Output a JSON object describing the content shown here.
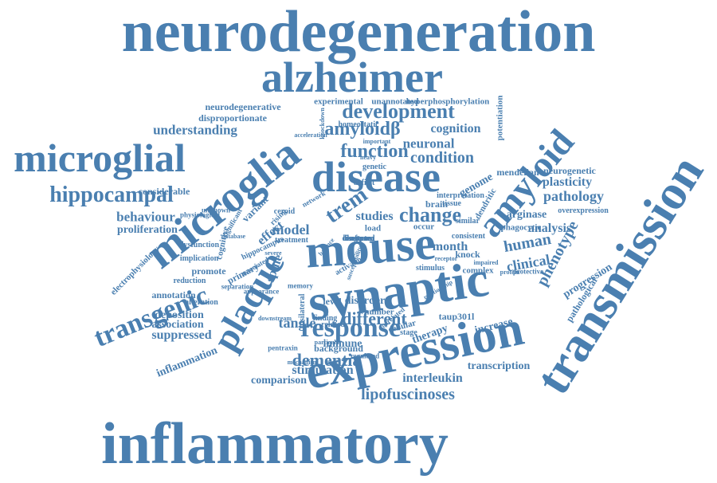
{
  "color": "#4a7fb0",
  "words": [
    "neurodegeneration",
    "alzheimer",
    "inflammatory",
    "transmission",
    "expression",
    "synaptic",
    "mouse",
    "disease",
    "microglia",
    "microglial",
    "plaque",
    "amyloid",
    "transgenic",
    "response",
    "hippocampal",
    "development",
    "trem",
    "function",
    "amyloidβ",
    "change",
    "condition",
    "understanding",
    "neuronal",
    "cognition",
    "dementia",
    "different",
    "lipofuscinoses",
    "phenotype",
    "pathology",
    "plasticity",
    "human",
    "model",
    "effect",
    "tangle",
    "studies",
    "behaviour",
    "proliferation",
    "clinical",
    "progression",
    "interleukin",
    "transcription",
    "stimulation",
    "comparison",
    "association",
    "deposition",
    "suppressed",
    "inflammation",
    "annotation",
    "neurodegenerative",
    "disproportionate",
    "hyperphosphorylation",
    "mendelian",
    "knock",
    "month",
    "increase",
    "therapy",
    "genome",
    "analysis",
    "arginase",
    "considerable",
    "primary",
    "neurogenetic",
    "experimental",
    "unannotated",
    "potentiation",
    "homeostatic",
    "pathological",
    "overexpression",
    "level",
    "immune",
    "brain",
    "electrophysiology",
    "promote",
    "implication",
    "alteration",
    "variant",
    "cognitive",
    "spine",
    "genetic",
    "background",
    "disorder",
    "taup301l",
    "number",
    "load",
    "occur",
    "phagocytic",
    "complex",
    "similar",
    "tissue",
    "interpretation",
    "reduction",
    "activation",
    "dysfunction",
    "stage",
    "network",
    "hippocampus",
    "deficit",
    "ceroid",
    "cellular",
    "dendritic",
    "protective",
    "stimulus",
    "consistent",
    "treatment",
    "related",
    "finding",
    "rising",
    "important",
    "acceleration",
    "knockdown",
    "physiological",
    "associated",
    "correlated",
    "regulated",
    "pentraxin",
    "mechanism",
    "downstream",
    "relationship",
    "appearance",
    "unknown",
    "significant",
    "heavy",
    "separation",
    "database",
    "particular",
    "susceptibility",
    "memory",
    "receptor",
    "protein",
    "balance",
    "severe",
    "impaired",
    "ipsilateral",
    "disrupted",
    "isoform",
    "longterm",
    "lastpm"
  ]
}
